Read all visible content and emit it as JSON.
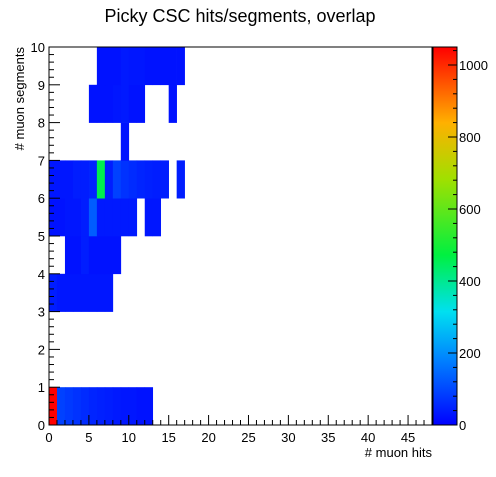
{
  "chart_data": {
    "type": "heatmap",
    "title": "Picky CSC hits/segments, overlap",
    "xlabel": "# muon hits",
    "ylabel": "# muon segments",
    "xlim": [
      0,
      48
    ],
    "ylim": [
      0,
      10
    ],
    "x_ticks": [
      0,
      5,
      10,
      15,
      20,
      25,
      30,
      35,
      40,
      45
    ],
    "y_ticks": [
      0,
      1,
      2,
      3,
      4,
      5,
      6,
      7,
      8,
      9,
      10
    ],
    "colorbar": {
      "min": 0,
      "max": 1050,
      "ticks": [
        0,
        200,
        400,
        600,
        800,
        1000
      ]
    },
    "grid": false,
    "legend": "none",
    "cells": [
      [
        0,
        0,
        1050
      ],
      [
        1,
        0,
        90
      ],
      [
        2,
        0,
        80
      ],
      [
        3,
        0,
        70
      ],
      [
        4,
        0,
        60
      ],
      [
        5,
        0,
        50
      ],
      [
        6,
        0,
        45
      ],
      [
        7,
        0,
        40
      ],
      [
        8,
        0,
        35
      ],
      [
        9,
        0,
        30
      ],
      [
        10,
        0,
        30
      ],
      [
        11,
        0,
        25
      ],
      [
        12,
        0,
        25
      ],
      [
        0,
        3,
        40
      ],
      [
        1,
        3,
        30
      ],
      [
        2,
        3,
        30
      ],
      [
        3,
        3,
        30
      ],
      [
        4,
        3,
        30
      ],
      [
        5,
        3,
        30
      ],
      [
        6,
        3,
        30
      ],
      [
        7,
        3,
        30
      ],
      [
        2,
        4,
        25
      ],
      [
        3,
        4,
        25
      ],
      [
        4,
        4,
        40
      ],
      [
        5,
        4,
        25
      ],
      [
        6,
        4,
        25
      ],
      [
        7,
        4,
        25
      ],
      [
        8,
        4,
        25
      ],
      [
        0,
        5,
        25
      ],
      [
        1,
        5,
        25
      ],
      [
        2,
        5,
        30
      ],
      [
        3,
        5,
        30
      ],
      [
        4,
        5,
        40
      ],
      [
        5,
        5,
        130
      ],
      [
        6,
        5,
        35
      ],
      [
        7,
        5,
        35
      ],
      [
        8,
        5,
        35
      ],
      [
        9,
        5,
        35
      ],
      [
        10,
        5,
        35
      ],
      [
        12,
        5,
        30
      ],
      [
        13,
        5,
        30
      ],
      [
        0,
        6,
        30
      ],
      [
        1,
        6,
        30
      ],
      [
        2,
        6,
        30
      ],
      [
        3,
        6,
        40
      ],
      [
        4,
        6,
        40
      ],
      [
        5,
        6,
        50
      ],
      [
        6,
        6,
        460
      ],
      [
        7,
        6,
        40
      ],
      [
        8,
        6,
        90
      ],
      [
        9,
        6,
        70
      ],
      [
        10,
        6,
        60
      ],
      [
        11,
        6,
        50
      ],
      [
        12,
        6,
        45
      ],
      [
        13,
        6,
        40
      ],
      [
        14,
        6,
        40
      ],
      [
        16,
        6,
        40
      ],
      [
        9,
        7,
        25
      ],
      [
        5,
        8,
        25
      ],
      [
        6,
        8,
        25
      ],
      [
        7,
        8,
        25
      ],
      [
        8,
        8,
        30
      ],
      [
        9,
        8,
        35
      ],
      [
        10,
        8,
        25
      ],
      [
        11,
        8,
        25
      ],
      [
        15,
        8,
        25
      ],
      [
        6,
        9,
        25
      ],
      [
        7,
        9,
        25
      ],
      [
        8,
        9,
        25
      ],
      [
        9,
        9,
        35
      ],
      [
        10,
        9,
        30
      ],
      [
        11,
        9,
        30
      ],
      [
        12,
        9,
        25
      ],
      [
        13,
        9,
        25
      ],
      [
        14,
        9,
        25
      ],
      [
        15,
        9,
        25
      ],
      [
        16,
        9,
        25
      ]
    ]
  }
}
